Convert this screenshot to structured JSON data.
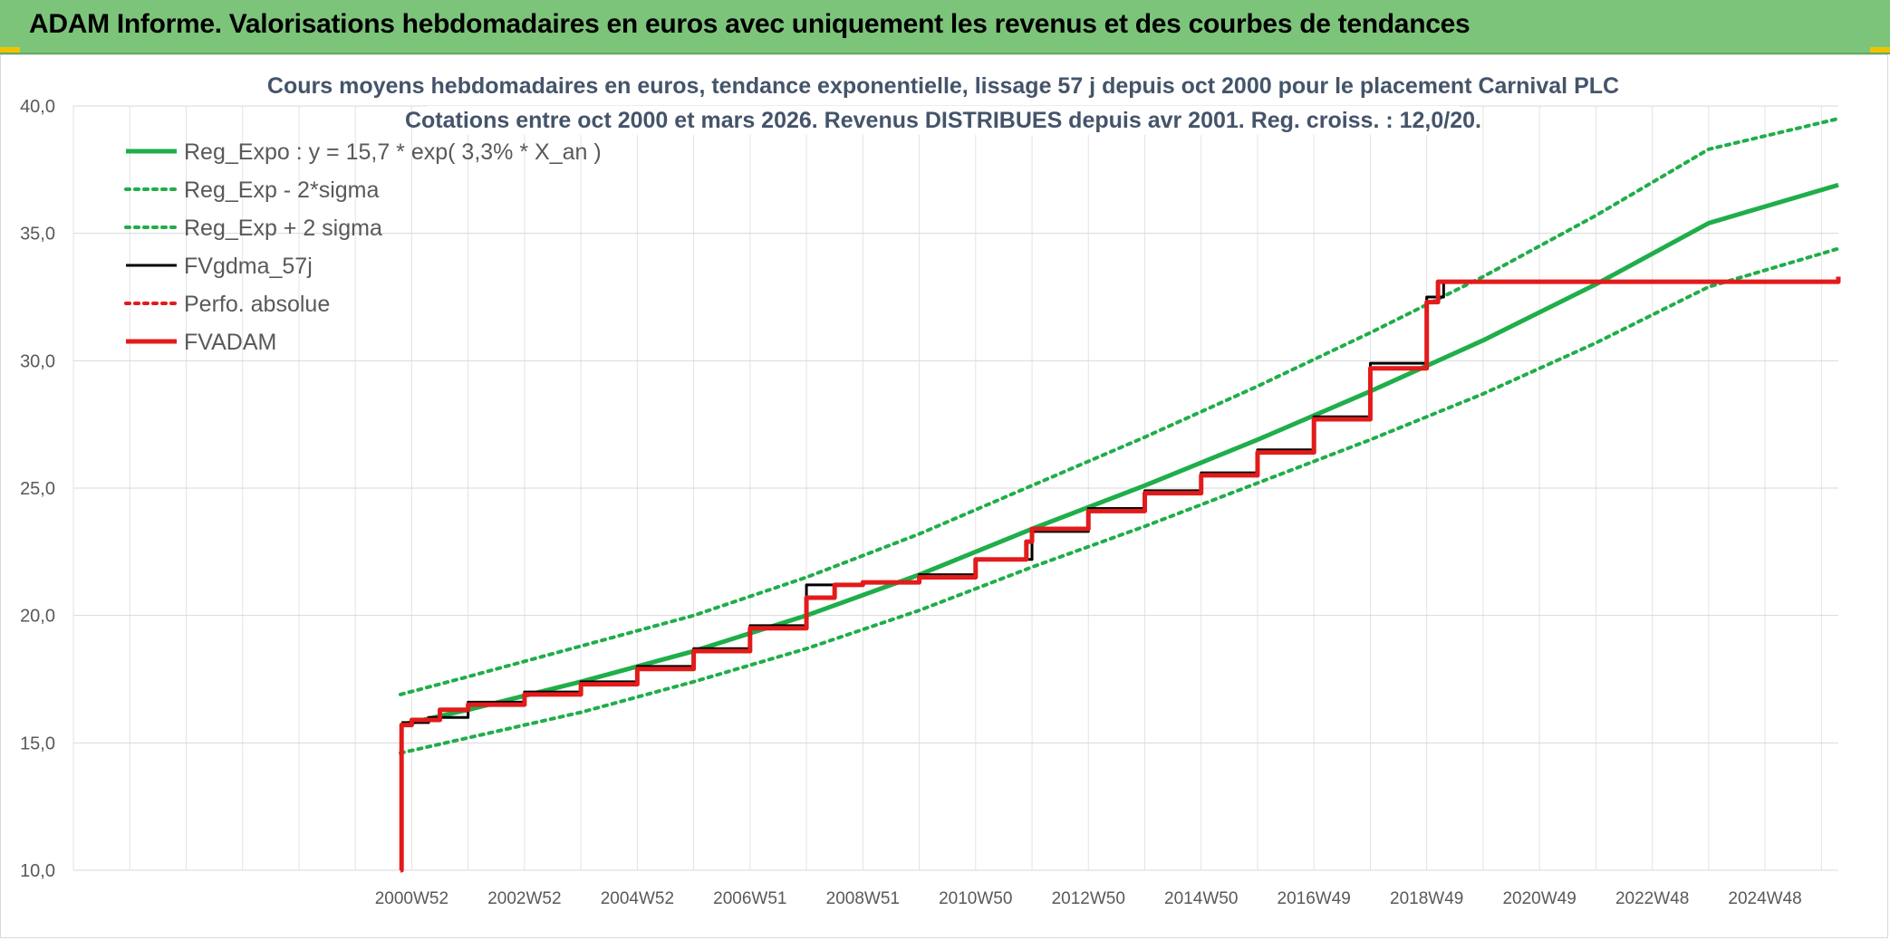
{
  "header": {
    "title": "ADAM Informe. Valorisations hebdomadaires en euros avec uniquement les revenus et des courbes de tendances",
    "accent_color": "#7dc47b",
    "corner_color": "#f2c200"
  },
  "chart_data": {
    "type": "line",
    "title_lines": [
      "Cours moyens hebdomadaires en euros, tendance exponentielle, lissage 57 j depuis oct 2000 pour le placement Carnival PLC",
      "Cotations entre oct 2000 et mars 2026. Revenus DISTRIBUES depuis avr 2001. Reg. croiss. : 12,0/20."
    ],
    "xlabel": "",
    "ylabel": "",
    "ylim": [
      10,
      40
    ],
    "xlim": [
      1995.0,
      2026.3
    ],
    "grid": true,
    "y_ticks": [
      "10,0",
      "15,0",
      "20,0",
      "25,0",
      "30,0",
      "35,0",
      "40,0"
    ],
    "x_tick_labels": [
      "2000W52",
      "2002W52",
      "2004W52",
      "2006W51",
      "2008W51",
      "2010W50",
      "2012W50",
      "2014W50",
      "2016W49",
      "2018W49",
      "2020W49",
      "2022W48",
      "2024W48"
    ],
    "legend_position": "top-left",
    "series": [
      {
        "name": "Reg_Expo : y = 15,7 * exp( 3,3% *  X_an )",
        "color": "#1fae4a",
        "style": "solid-thick",
        "x": [
          2000.8,
          2002,
          2004,
          2006,
          2008,
          2010,
          2012,
          2014,
          2016,
          2018,
          2020,
          2022,
          2024,
          2026.3
        ],
        "values": [
          15.7,
          16.3,
          17.4,
          18.6,
          20.0,
          21.6,
          23.4,
          25.1,
          26.9,
          28.8,
          30.8,
          33.0,
          35.4,
          36.9
        ]
      },
      {
        "name": "Reg_Exp - 2*sigma",
        "color": "#1fae4a",
        "style": "dotted",
        "x": [
          2000.8,
          2002,
          2004,
          2006,
          2008,
          2010,
          2012,
          2014,
          2016,
          2018,
          2020,
          2022,
          2024,
          2026.3
        ],
        "values": [
          14.6,
          15.2,
          16.2,
          17.4,
          18.7,
          20.2,
          21.9,
          23.5,
          25.2,
          26.9,
          28.7,
          30.7,
          32.9,
          34.4
        ]
      },
      {
        "name": "Reg_Exp + 2 sigma",
        "color": "#1fae4a",
        "style": "dotted",
        "x": [
          2000.8,
          2002,
          2004,
          2006,
          2008,
          2010,
          2012,
          2014,
          2016,
          2018,
          2020,
          2022,
          2024,
          2026.3
        ],
        "values": [
          16.9,
          17.6,
          18.8,
          20.0,
          21.5,
          23.2,
          25.1,
          27.0,
          29.0,
          31.1,
          33.3,
          35.7,
          38.3,
          39.5
        ]
      },
      {
        "name": "FVgdma_57j",
        "color": "#000000",
        "style": "solid",
        "x": [
          2000.82,
          2001.3,
          2002,
          2003,
          2004,
          2005,
          2006,
          2007,
          2008,
          2009,
          2010,
          2011,
          2012,
          2013,
          2014,
          2015,
          2016,
          2017,
          2018,
          2019,
          2019.3,
          2020,
          2022,
          2024,
          2026,
          2026.3
        ],
        "values": [
          15.8,
          16.0,
          16.6,
          17.0,
          17.4,
          18.0,
          18.7,
          19.6,
          21.2,
          21.3,
          21.6,
          22.2,
          23.3,
          24.2,
          24.9,
          25.6,
          26.5,
          27.8,
          29.9,
          32.5,
          33.1,
          33.1,
          33.1,
          33.1,
          33.1,
          33.3
        ]
      },
      {
        "name": "Perfo. absolue",
        "color": "#e21b1b",
        "style": "dotted",
        "x": [],
        "values": []
      },
      {
        "name": "FVADAM",
        "color": "#e21b1b",
        "style": "solid-thick",
        "x": [
          2000.8,
          2000.82,
          2001.0,
          2001.5,
          2002,
          2003,
          2004,
          2005,
          2006,
          2007,
          2008,
          2008.5,
          2009,
          2010,
          2011,
          2011.9,
          2012,
          2013,
          2014,
          2015,
          2016,
          2017,
          2018,
          2019,
          2019.2,
          2020,
          2022,
          2024,
          2026,
          2026.3
        ],
        "values": [
          10.0,
          15.7,
          15.9,
          16.3,
          16.5,
          16.9,
          17.3,
          17.9,
          18.6,
          19.5,
          20.7,
          21.2,
          21.3,
          21.5,
          22.2,
          22.9,
          23.4,
          24.1,
          24.8,
          25.5,
          26.4,
          27.7,
          29.7,
          32.3,
          33.1,
          33.1,
          33.1,
          33.1,
          33.1,
          33.3
        ]
      }
    ]
  }
}
